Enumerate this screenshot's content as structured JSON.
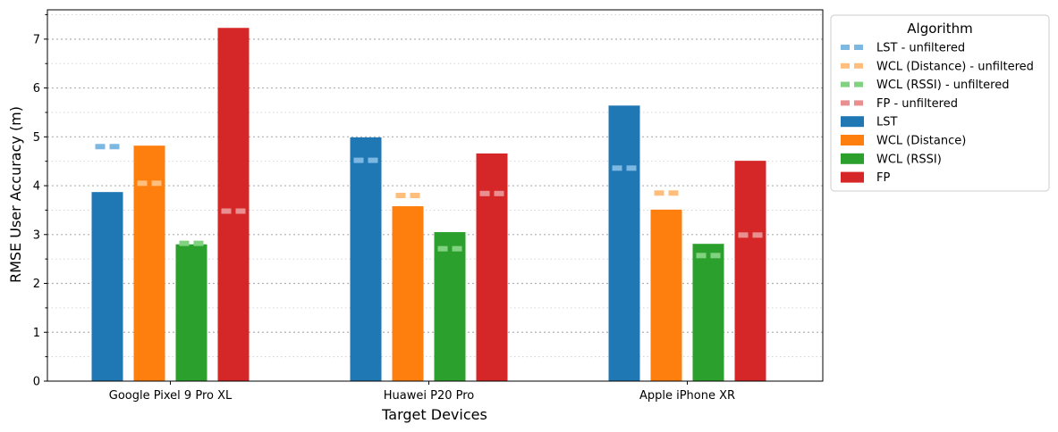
{
  "chart_data": {
    "type": "bar",
    "title": "",
    "xlabel": "Target Devices",
    "ylabel": "RMSE User Accuracy (m)",
    "ylim": [
      0,
      7.6
    ],
    "yticks": [
      0,
      1,
      2,
      3,
      4,
      5,
      6,
      7
    ],
    "categories": [
      "Google Pixel 9 Pro XL",
      "Huawei P20 Pro",
      "Apple iPhone XR"
    ],
    "grid": "horizontal dotted (major and minor)",
    "legend": {
      "title": "Algorithm",
      "position": "outside right, top",
      "entries": [
        {
          "label": "LST - unfiltered",
          "style": "dash",
          "color": "#7cb8e2"
        },
        {
          "label": "WCL (Distance) - unfiltered",
          "style": "dash",
          "color": "#ffbe7c"
        },
        {
          "label": "WCL (RSSI) - unfiltered",
          "style": "dash",
          "color": "#80d280"
        },
        {
          "label": "FP - unfiltered",
          "style": "dash",
          "color": "#ea8f90"
        },
        {
          "label": "LST",
          "style": "bar",
          "color": "#1f77b4"
        },
        {
          "label": "WCL (Distance)",
          "style": "bar",
          "color": "#ff7f0e"
        },
        {
          "label": "WCL (RSSI)",
          "style": "bar",
          "color": "#2ca02c"
        },
        {
          "label": "FP",
          "style": "bar",
          "color": "#d62728"
        }
      ]
    },
    "series": [
      {
        "name": "LST",
        "color": "#1f77b4",
        "dash_color": "#7cb8e2",
        "values": [
          3.87,
          4.99,
          5.64
        ],
        "unfiltered": [
          4.8,
          4.52,
          4.36
        ]
      },
      {
        "name": "WCL (Distance)",
        "color": "#ff7f0e",
        "dash_color": "#ffbe7c",
        "values": [
          4.82,
          3.58,
          3.51
        ],
        "unfiltered": [
          4.05,
          3.8,
          3.85
        ]
      },
      {
        "name": "WCL (RSSI)",
        "color": "#2ca02c",
        "dash_color": "#80d280",
        "values": [
          2.8,
          3.05,
          2.81
        ],
        "unfiltered": [
          2.82,
          2.71,
          2.57
        ]
      },
      {
        "name": "FP",
        "color": "#d62728",
        "dash_color": "#ea8f90",
        "values": [
          7.23,
          4.66,
          4.51
        ],
        "unfiltered": [
          3.48,
          3.84,
          2.99
        ]
      }
    ]
  }
}
